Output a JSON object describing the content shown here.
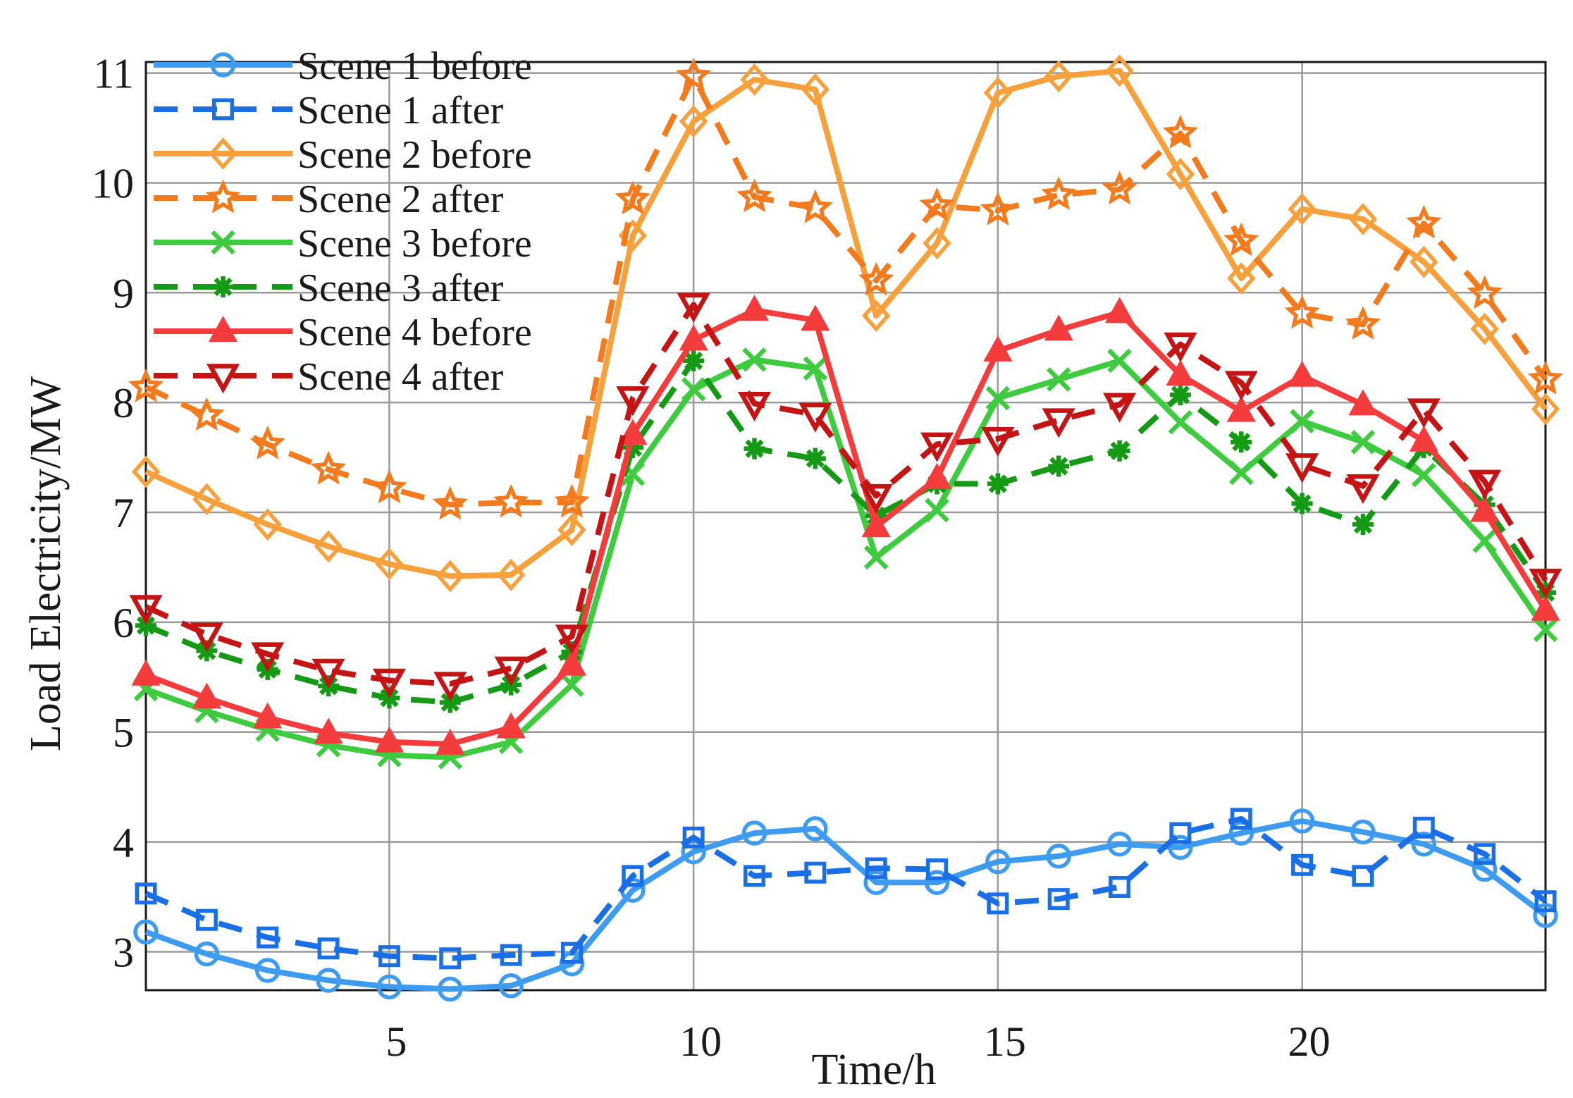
{
  "chart_data": {
    "type": "line",
    "title": "",
    "xlabel": "Time/h",
    "ylabel": "Load Electricity/MW",
    "xlim": [
      1,
      24
    ],
    "ylim": [
      2.65,
      11.1
    ],
    "xticks": [
      5,
      10,
      15,
      20
    ],
    "yticks": [
      3,
      4,
      5,
      6,
      7,
      8,
      9,
      10,
      11
    ],
    "grid": true,
    "legend_position": "top-left",
    "x": [
      1,
      2,
      3,
      4,
      5,
      6,
      7,
      8,
      9,
      10,
      11,
      12,
      13,
      14,
      15,
      16,
      17,
      18,
      19,
      20,
      21,
      22,
      23,
      24
    ],
    "series": [
      {
        "name": "Scene 1 before",
        "color": "#3d9bf0",
        "dash": "solid",
        "marker": "circle",
        "values": [
          3.18,
          2.98,
          2.83,
          2.74,
          2.68,
          2.66,
          2.69,
          2.89,
          3.56,
          3.91,
          4.08,
          4.12,
          3.63,
          3.63,
          3.82,
          3.87,
          3.98,
          3.95,
          4.08,
          4.19,
          4.09,
          3.98,
          3.75,
          3.33
        ]
      },
      {
        "name": "Scene 1 after",
        "color": "#1a6fe6",
        "dash": "dashed",
        "marker": "square",
        "values": [
          3.53,
          3.29,
          3.13,
          3.03,
          2.96,
          2.94,
          2.97,
          2.99,
          3.69,
          4.04,
          3.69,
          3.72,
          3.76,
          3.75,
          3.44,
          3.48,
          3.59,
          4.08,
          4.21,
          3.79,
          3.69,
          4.13,
          3.89,
          3.46
        ]
      },
      {
        "name": "Scene 2 before",
        "color": "#f7a03c",
        "dash": "solid",
        "marker": "diamond",
        "values": [
          7.37,
          7.12,
          6.89,
          6.69,
          6.53,
          6.42,
          6.43,
          6.84,
          9.52,
          10.56,
          10.94,
          10.85,
          8.79,
          9.45,
          10.82,
          10.97,
          11.02,
          10.08,
          9.13,
          9.76,
          9.67,
          9.28,
          8.67,
          7.94
        ]
      },
      {
        "name": "Scene 2 after",
        "color": "#f47a1e",
        "dash": "dashed",
        "marker": "star",
        "values": [
          8.14,
          7.88,
          7.62,
          7.39,
          7.22,
          7.07,
          7.09,
          7.09,
          9.85,
          10.97,
          9.87,
          9.77,
          9.11,
          9.79,
          9.75,
          9.89,
          9.94,
          10.45,
          9.47,
          8.81,
          8.71,
          9.63,
          8.99,
          8.21
        ]
      },
      {
        "name": "Scene 3 before",
        "color": "#3fcb3f",
        "dash": "solid",
        "marker": "x",
        "values": [
          5.39,
          5.19,
          5.02,
          4.88,
          4.79,
          4.77,
          4.91,
          5.43,
          7.35,
          8.12,
          8.39,
          8.31,
          6.59,
          7.02,
          8.04,
          8.21,
          8.38,
          7.82,
          7.36,
          7.83,
          7.64,
          7.34,
          6.74,
          5.93
        ]
      },
      {
        "name": "Scene 3 after",
        "color": "#159a15",
        "dash": "dashed",
        "marker": "asterisk",
        "values": [
          5.97,
          5.74,
          5.57,
          5.42,
          5.31,
          5.27,
          5.43,
          5.73,
          7.59,
          8.38,
          7.58,
          7.49,
          6.97,
          7.26,
          7.26,
          7.42,
          7.56,
          8.07,
          7.64,
          7.08,
          6.89,
          7.59,
          7.07,
          6.27
        ]
      },
      {
        "name": "Scene 4 before",
        "color": "#f53c3c",
        "dash": "solid",
        "marker": "triangle-up",
        "values": [
          5.52,
          5.31,
          5.13,
          4.99,
          4.91,
          4.89,
          5.04,
          5.61,
          7.71,
          8.57,
          8.84,
          8.75,
          6.87,
          7.31,
          8.47,
          8.66,
          8.82,
          8.25,
          7.92,
          8.24,
          7.98,
          7.65,
          7.01,
          6.11
        ]
      },
      {
        "name": "Scene 4 after",
        "color": "#c41414",
        "dash": "dashed",
        "marker": "triangle-down",
        "values": [
          6.14,
          5.89,
          5.71,
          5.56,
          5.47,
          5.44,
          5.58,
          5.87,
          8.04,
          8.89,
          7.99,
          7.89,
          7.15,
          7.62,
          7.67,
          7.84,
          7.98,
          8.53,
          8.18,
          7.43,
          7.24,
          7.93,
          7.28,
          6.38
        ]
      }
    ]
  }
}
